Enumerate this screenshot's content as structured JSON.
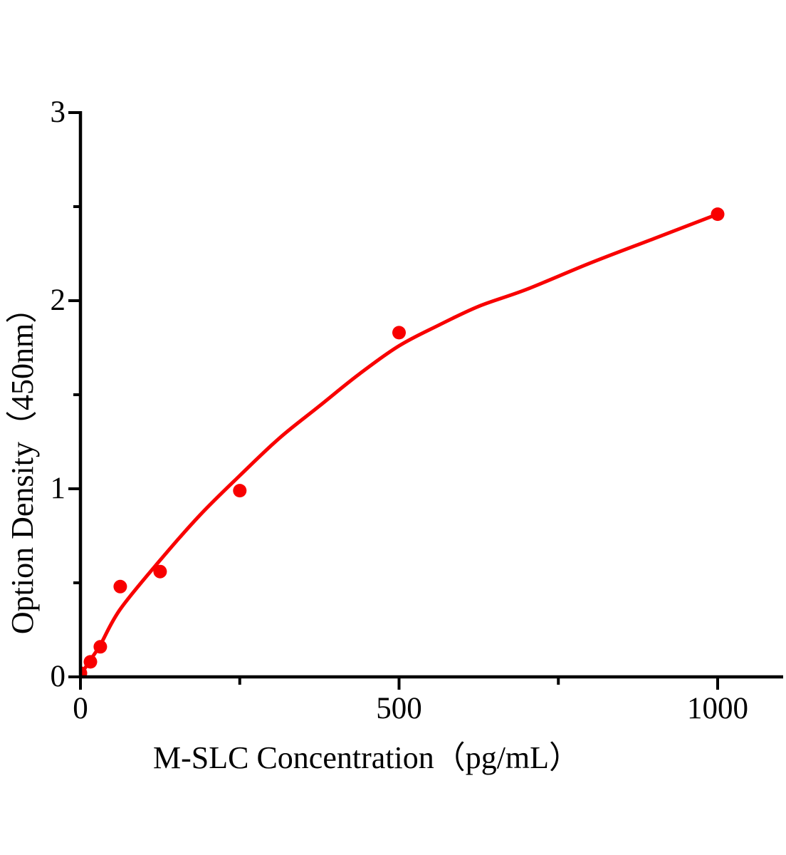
{
  "figure": {
    "background_color": "#ffffff",
    "axis_color": "#000000",
    "accent_color": "#f80000"
  },
  "chart_data": {
    "type": "scatter",
    "title": "",
    "xlabel": "M-SLC Concentration（pg/mL）",
    "ylabel": "Option Density（450nm）",
    "xlim": [
      0,
      1105
    ],
    "ylim": [
      0,
      3
    ],
    "grid": "off",
    "legend": "none",
    "x_ticks_major": [
      0,
      500,
      1000
    ],
    "x_ticks_minor": [
      250,
      750
    ],
    "y_ticks_major": [
      0,
      1,
      2,
      3
    ],
    "y_ticks_minor": [
      0.5,
      1.5,
      2.5
    ],
    "series": [
      {
        "name": "standard-points",
        "marker": "circle",
        "color": "#f80000",
        "x": [
          0,
          15.6,
          31.2,
          62.5,
          125,
          250,
          500,
          1000
        ],
        "y": [
          0.02,
          0.08,
          0.16,
          0.48,
          0.56,
          0.99,
          1.83,
          2.46
        ]
      }
    ],
    "fit_curve": {
      "name": "4pl-fit-line",
      "color": "#f80000",
      "points": [
        [
          0,
          0.01
        ],
        [
          15.6,
          0.09
        ],
        [
          31.2,
          0.17
        ],
        [
          62.5,
          0.36
        ],
        [
          125,
          0.62
        ],
        [
          187.5,
          0.86
        ],
        [
          250,
          1.07
        ],
        [
          312.5,
          1.27
        ],
        [
          375,
          1.44
        ],
        [
          437.5,
          1.61
        ],
        [
          500,
          1.76
        ],
        [
          562.5,
          1.87
        ],
        [
          625,
          1.97
        ],
        [
          700,
          2.06
        ],
        [
          800,
          2.2
        ],
        [
          900,
          2.33
        ],
        [
          1000,
          2.46
        ]
      ]
    }
  }
}
